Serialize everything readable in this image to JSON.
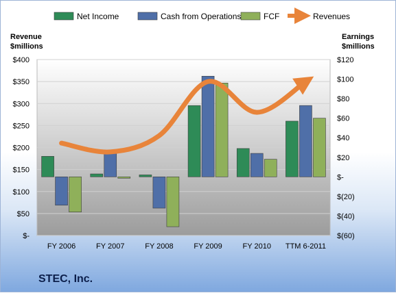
{
  "company": "STEC, Inc.",
  "chart_data": {
    "type": "bar",
    "categories": [
      "FY 2006",
      "FY 2007",
      "FY 2008",
      "FY 2009",
      "FY 2010",
      "TTM 6-2011"
    ],
    "series": [
      {
        "name": "Net Income",
        "axis": "right",
        "color": "#2e8b57",
        "values": [
          21,
          3,
          2,
          73,
          29,
          57
        ]
      },
      {
        "name": "Cash from Operations",
        "axis": "right",
        "color": "#4f6fa8",
        "values": [
          -29,
          24,
          -32,
          103,
          24,
          73
        ]
      },
      {
        "name": "FCF",
        "axis": "right",
        "color": "#8fb05a",
        "values": [
          -36,
          0,
          -51,
          96,
          18,
          60
        ]
      }
    ],
    "line_series": {
      "name": "Revenues",
      "axis": "left",
      "color": "#e8843a",
      "values": [
        210,
        190,
        227,
        350,
        280,
        350
      ]
    },
    "left_axis": {
      "title": [
        "Revenue",
        "$millions"
      ],
      "ylim": [
        0,
        400
      ],
      "ticks": [
        0,
        50,
        100,
        150,
        200,
        250,
        300,
        350,
        400
      ],
      "tick_labels": [
        "$-",
        "$50",
        "$100",
        "$150",
        "$200",
        "$250",
        "$300",
        "$350",
        "$400"
      ]
    },
    "right_axis": {
      "title": [
        "Earnings",
        "$millions"
      ],
      "ylim": [
        -60,
        120
      ],
      "ticks": [
        -60,
        -40,
        -20,
        0,
        20,
        40,
        60,
        80,
        100,
        120
      ],
      "tick_labels": [
        "$(60)",
        "$(40)",
        "$(20)",
        "$-",
        "$20",
        "$40",
        "$60",
        "$80",
        "$100",
        "$120"
      ]
    },
    "legend_position": "top"
  }
}
